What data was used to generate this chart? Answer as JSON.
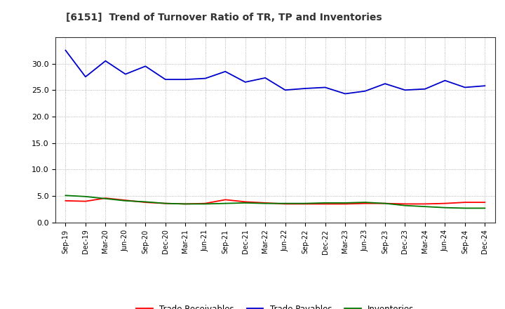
{
  "title": "[6151]  Trend of Turnover Ratio of TR, TP and Inventories",
  "x_labels": [
    "Sep-19",
    "Dec-19",
    "Mar-20",
    "Jun-20",
    "Sep-20",
    "Dec-20",
    "Mar-21",
    "Jun-21",
    "Sep-21",
    "Dec-21",
    "Mar-22",
    "Jun-22",
    "Sep-22",
    "Dec-22",
    "Mar-23",
    "Jun-23",
    "Sep-23",
    "Dec-23",
    "Mar-24",
    "Jun-24",
    "Sep-24",
    "Dec-24"
  ],
  "trade_receivables": [
    4.1,
    4.0,
    4.6,
    4.2,
    3.8,
    3.6,
    3.5,
    3.6,
    4.3,
    3.9,
    3.7,
    3.5,
    3.5,
    3.5,
    3.5,
    3.6,
    3.6,
    3.5,
    3.5,
    3.6,
    3.8,
    3.8
  ],
  "trade_payables": [
    32.5,
    27.5,
    30.5,
    28.0,
    29.5,
    27.0,
    27.0,
    27.2,
    28.5,
    26.5,
    27.3,
    25.0,
    25.3,
    25.5,
    24.3,
    24.8,
    26.2,
    25.0,
    25.2,
    26.8,
    25.5,
    25.8
  ],
  "inventories": [
    5.1,
    4.9,
    4.5,
    4.1,
    3.9,
    3.6,
    3.5,
    3.5,
    3.6,
    3.7,
    3.6,
    3.6,
    3.6,
    3.7,
    3.7,
    3.8,
    3.6,
    3.2,
    3.0,
    2.8,
    2.7,
    2.7
  ],
  "tr_color": "#ff0000",
  "tp_color": "#0000cc",
  "inv_color": "#007700",
  "bg_color": "#ffffff",
  "grid_color": "#999999",
  "ylim": [
    0,
    35
  ],
  "yticks": [
    0.0,
    5.0,
    10.0,
    15.0,
    20.0,
    25.0,
    30.0
  ],
  "title_color": "#333333",
  "legend_labels": [
    "Trade Receivables",
    "Trade Payables",
    "Inventories"
  ]
}
